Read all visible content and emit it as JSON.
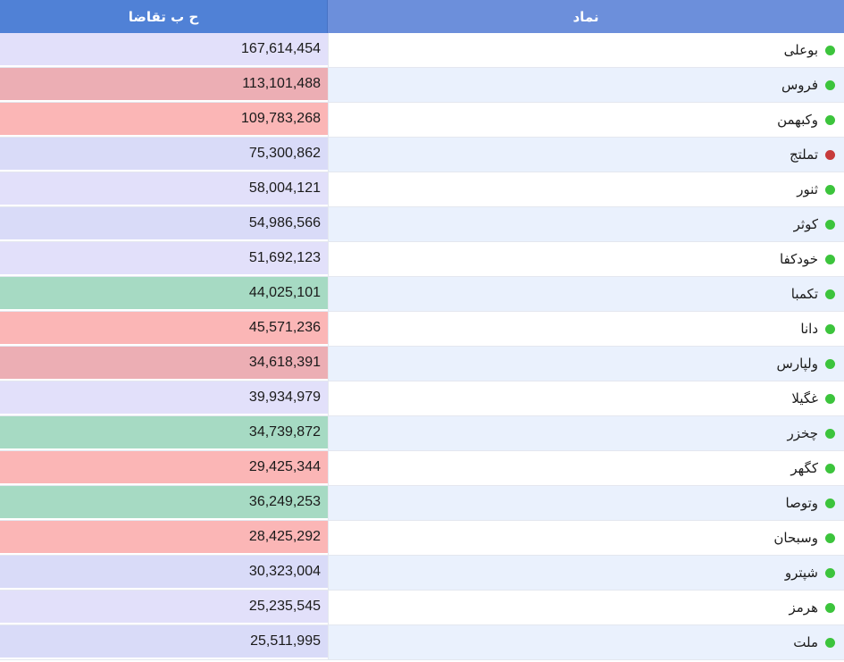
{
  "header": {
    "symbol_label": "نماد",
    "demand_label": "ح ب تقاضا"
  },
  "colors": {
    "green_dot": "#3cc43c",
    "red_dot": "#c73b3b",
    "row_white": "#ffffff",
    "row_alt": "#eaf1fd",
    "lavender": "#e2e0fa",
    "lavender_dark": "#d9dbf8",
    "pink": "#fbb6b6",
    "pink_dark": "#ecaeb4",
    "green": "#a6dac3"
  },
  "rows": [
    {
      "symbol": "بوعلی",
      "value": "167,614,454",
      "dot": "green",
      "bg": "lavender"
    },
    {
      "symbol": "فروس",
      "value": "113,101,488",
      "dot": "green",
      "bg": "pink_dark"
    },
    {
      "symbol": "وکبهمن",
      "value": "109,783,268",
      "dot": "green",
      "bg": "pink"
    },
    {
      "symbol": "تملتج",
      "value": "75,300,862",
      "dot": "red",
      "bg": "lavender_dark"
    },
    {
      "symbol": "ثنور",
      "value": "58,004,121",
      "dot": "green",
      "bg": "lavender"
    },
    {
      "symbol": "کوثر",
      "value": "54,986,566",
      "dot": "green",
      "bg": "lavender_dark"
    },
    {
      "symbol": "خودکفا",
      "value": "51,692,123",
      "dot": "green",
      "bg": "lavender"
    },
    {
      "symbol": "تکمبا",
      "value": "44,025,101",
      "dot": "green",
      "bg": "green"
    },
    {
      "symbol": "دانا",
      "value": "45,571,236",
      "dot": "green",
      "bg": "pink"
    },
    {
      "symbol": "ولپارس",
      "value": "34,618,391",
      "dot": "green",
      "bg": "pink_dark"
    },
    {
      "symbol": "غگیلا",
      "value": "39,934,979",
      "dot": "green",
      "bg": "lavender"
    },
    {
      "symbol": "چخزر",
      "value": "34,739,872",
      "dot": "green",
      "bg": "green"
    },
    {
      "symbol": "کگهر",
      "value": "29,425,344",
      "dot": "green",
      "bg": "pink"
    },
    {
      "symbol": "وتوصا",
      "value": "36,249,253",
      "dot": "green",
      "bg": "green"
    },
    {
      "symbol": "وسبحان",
      "value": "28,425,292",
      "dot": "green",
      "bg": "pink"
    },
    {
      "symbol": "شپترو",
      "value": "30,323,004",
      "dot": "green",
      "bg": "lavender_dark"
    },
    {
      "symbol": "هرمز",
      "value": "25,235,545",
      "dot": "green",
      "bg": "lavender"
    },
    {
      "symbol": "ملت",
      "value": "25,511,995",
      "dot": "green",
      "bg": "lavender_dark"
    }
  ]
}
